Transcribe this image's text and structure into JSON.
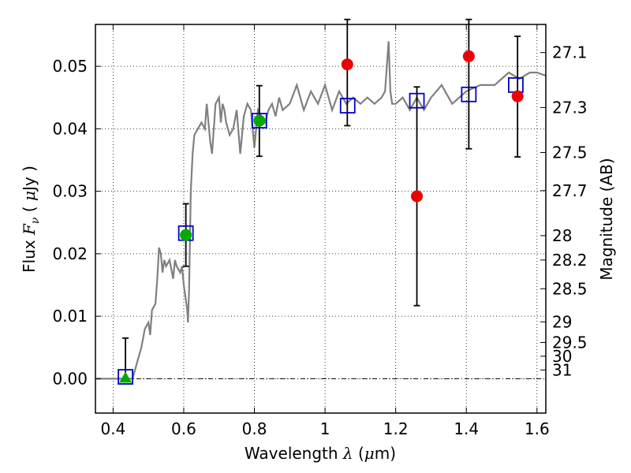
{
  "chart_data": {
    "type": "scatter",
    "xlabel": {
      "prefix": "Wavelength  ",
      "symbol": "λ",
      "unit_open": " (",
      "unit_mu": "μ",
      "unit_rest": "m)"
    },
    "ylabel": {
      "prefix": "Flux  ",
      "symbol": "F",
      "sub": "ν",
      "unit_open": "  ( ",
      "unit_mu": "μ",
      "unit_rest": "Jy )"
    },
    "y2label": "Magnitude (AB)",
    "xlim": [
      0.35,
      1.625
    ],
    "ylim": [
      -0.0055,
      0.0567
    ],
    "xticks": [
      0.4,
      0.6,
      0.8,
      1.0,
      1.2,
      1.4,
      1.6
    ],
    "xtick_labels": [
      "0.4",
      "0.6",
      "0.8",
      "1",
      "1.2",
      "1.4",
      "1.6"
    ],
    "yticks": [
      0.0,
      0.01,
      0.02,
      0.03,
      0.04,
      0.05
    ],
    "ytick_labels": [
      "0.00",
      "0.01",
      "0.02",
      "0.03",
      "0.04",
      "0.05"
    ],
    "y2ticks": [
      {
        "label": "27.1",
        "flux": 0.0522
      },
      {
        "label": "27.3",
        "flux": 0.0434
      },
      {
        "label": "27.5",
        "flux": 0.0362
      },
      {
        "label": "27.7",
        "flux": 0.0301
      },
      {
        "label": "28",
        "flux": 0.0229
      },
      {
        "label": "28.2",
        "flux": 0.019
      },
      {
        "label": "28.5",
        "flux": 0.0144
      },
      {
        "label": "29",
        "flux": 0.0091
      },
      {
        "label": "29.5",
        "flux": 0.0058
      },
      {
        "label": "30",
        "flux": 0.0036
      },
      {
        "label": "31",
        "flux": 0.0014
      }
    ],
    "grid": true,
    "colors": {
      "model": "#808080",
      "model_photometry": "#0000cc",
      "observed_red": "#ee0000",
      "observed_green": "#00aa00",
      "errorbar": "#000000"
    },
    "model_spectrum": {
      "x": [
        0.35,
        0.44,
        0.455,
        0.46,
        0.47,
        0.48,
        0.49,
        0.5,
        0.505,
        0.51,
        0.52,
        0.525,
        0.53,
        0.535,
        0.54,
        0.545,
        0.55,
        0.56,
        0.57,
        0.575,
        0.58,
        0.59,
        0.595,
        0.6,
        0.605,
        0.61,
        0.612,
        0.615,
        0.62,
        0.625,
        0.63,
        0.64,
        0.65,
        0.66,
        0.665,
        0.67,
        0.675,
        0.68,
        0.69,
        0.7,
        0.705,
        0.71,
        0.715,
        0.72,
        0.73,
        0.74,
        0.75,
        0.76,
        0.77,
        0.78,
        0.79,
        0.8,
        0.81,
        0.82,
        0.83,
        0.84,
        0.85,
        0.86,
        0.87,
        0.88,
        0.9,
        0.92,
        0.94,
        0.96,
        0.98,
        1.0,
        1.02,
        1.04,
        1.06,
        1.08,
        1.1,
        1.12,
        1.14,
        1.16,
        1.17,
        1.18,
        1.185,
        1.19,
        1.2,
        1.22,
        1.24,
        1.26,
        1.28,
        1.3,
        1.33,
        1.36,
        1.4,
        1.44,
        1.48,
        1.5,
        1.52,
        1.55,
        1.58,
        1.6,
        1.625
      ],
      "y": [
        0.0,
        0.0,
        0.0,
        0.001,
        0.003,
        0.005,
        0.008,
        0.009,
        0.007,
        0.011,
        0.012,
        0.016,
        0.021,
        0.02,
        0.017,
        0.019,
        0.018,
        0.019,
        0.016,
        0.019,
        0.018,
        0.017,
        0.018,
        0.015,
        0.013,
        0.011,
        0.009,
        0.014,
        0.03,
        0.036,
        0.039,
        0.04,
        0.041,
        0.04,
        0.044,
        0.041,
        0.038,
        0.036,
        0.044,
        0.045,
        0.041,
        0.044,
        0.043,
        0.041,
        0.039,
        0.04,
        0.043,
        0.036,
        0.042,
        0.044,
        0.043,
        0.037,
        0.043,
        0.042,
        0.041,
        0.043,
        0.044,
        0.042,
        0.045,
        0.043,
        0.044,
        0.047,
        0.043,
        0.046,
        0.044,
        0.047,
        0.043,
        0.046,
        0.044,
        0.045,
        0.044,
        0.045,
        0.044,
        0.045,
        0.046,
        0.054,
        0.046,
        0.044,
        0.044,
        0.045,
        0.043,
        0.045,
        0.043,
        0.045,
        0.047,
        0.044,
        0.046,
        0.047,
        0.047,
        0.048,
        0.049,
        0.048,
        0.049,
        0.049,
        0.0485
      ]
    },
    "model_photometry": {
      "x": [
        0.435,
        0.606,
        0.814,
        1.064,
        1.26,
        1.407,
        1.54
      ],
      "y": [
        0.0003,
        0.0233,
        0.0413,
        0.0437,
        0.0445,
        0.0455,
        0.047
      ]
    },
    "observed_red": {
      "x": [
        1.063,
        1.26,
        1.407,
        1.545
      ],
      "y": [
        0.0503,
        0.0292,
        0.0516,
        0.0452
      ]
    },
    "observed_green": {
      "x": [
        0.435,
        0.606,
        0.814
      ],
      "y": [
        0.0,
        0.023,
        0.0413
      ]
    },
    "errorbars": [
      {
        "x": 0.435,
        "low": 0.0,
        "high": 0.0065
      },
      {
        "x": 0.606,
        "low": 0.018,
        "high": 0.028
      },
      {
        "x": 0.814,
        "low": 0.0356,
        "high": 0.0469
      },
      {
        "x": 1.063,
        "low": 0.0405,
        "high": 0.0575
      },
      {
        "x": 1.26,
        "low": 0.0117,
        "high": 0.0467
      },
      {
        "x": 1.407,
        "low": 0.0368,
        "high": 0.0575
      },
      {
        "x": 1.545,
        "low": 0.0355,
        "high": 0.0548
      }
    ]
  }
}
